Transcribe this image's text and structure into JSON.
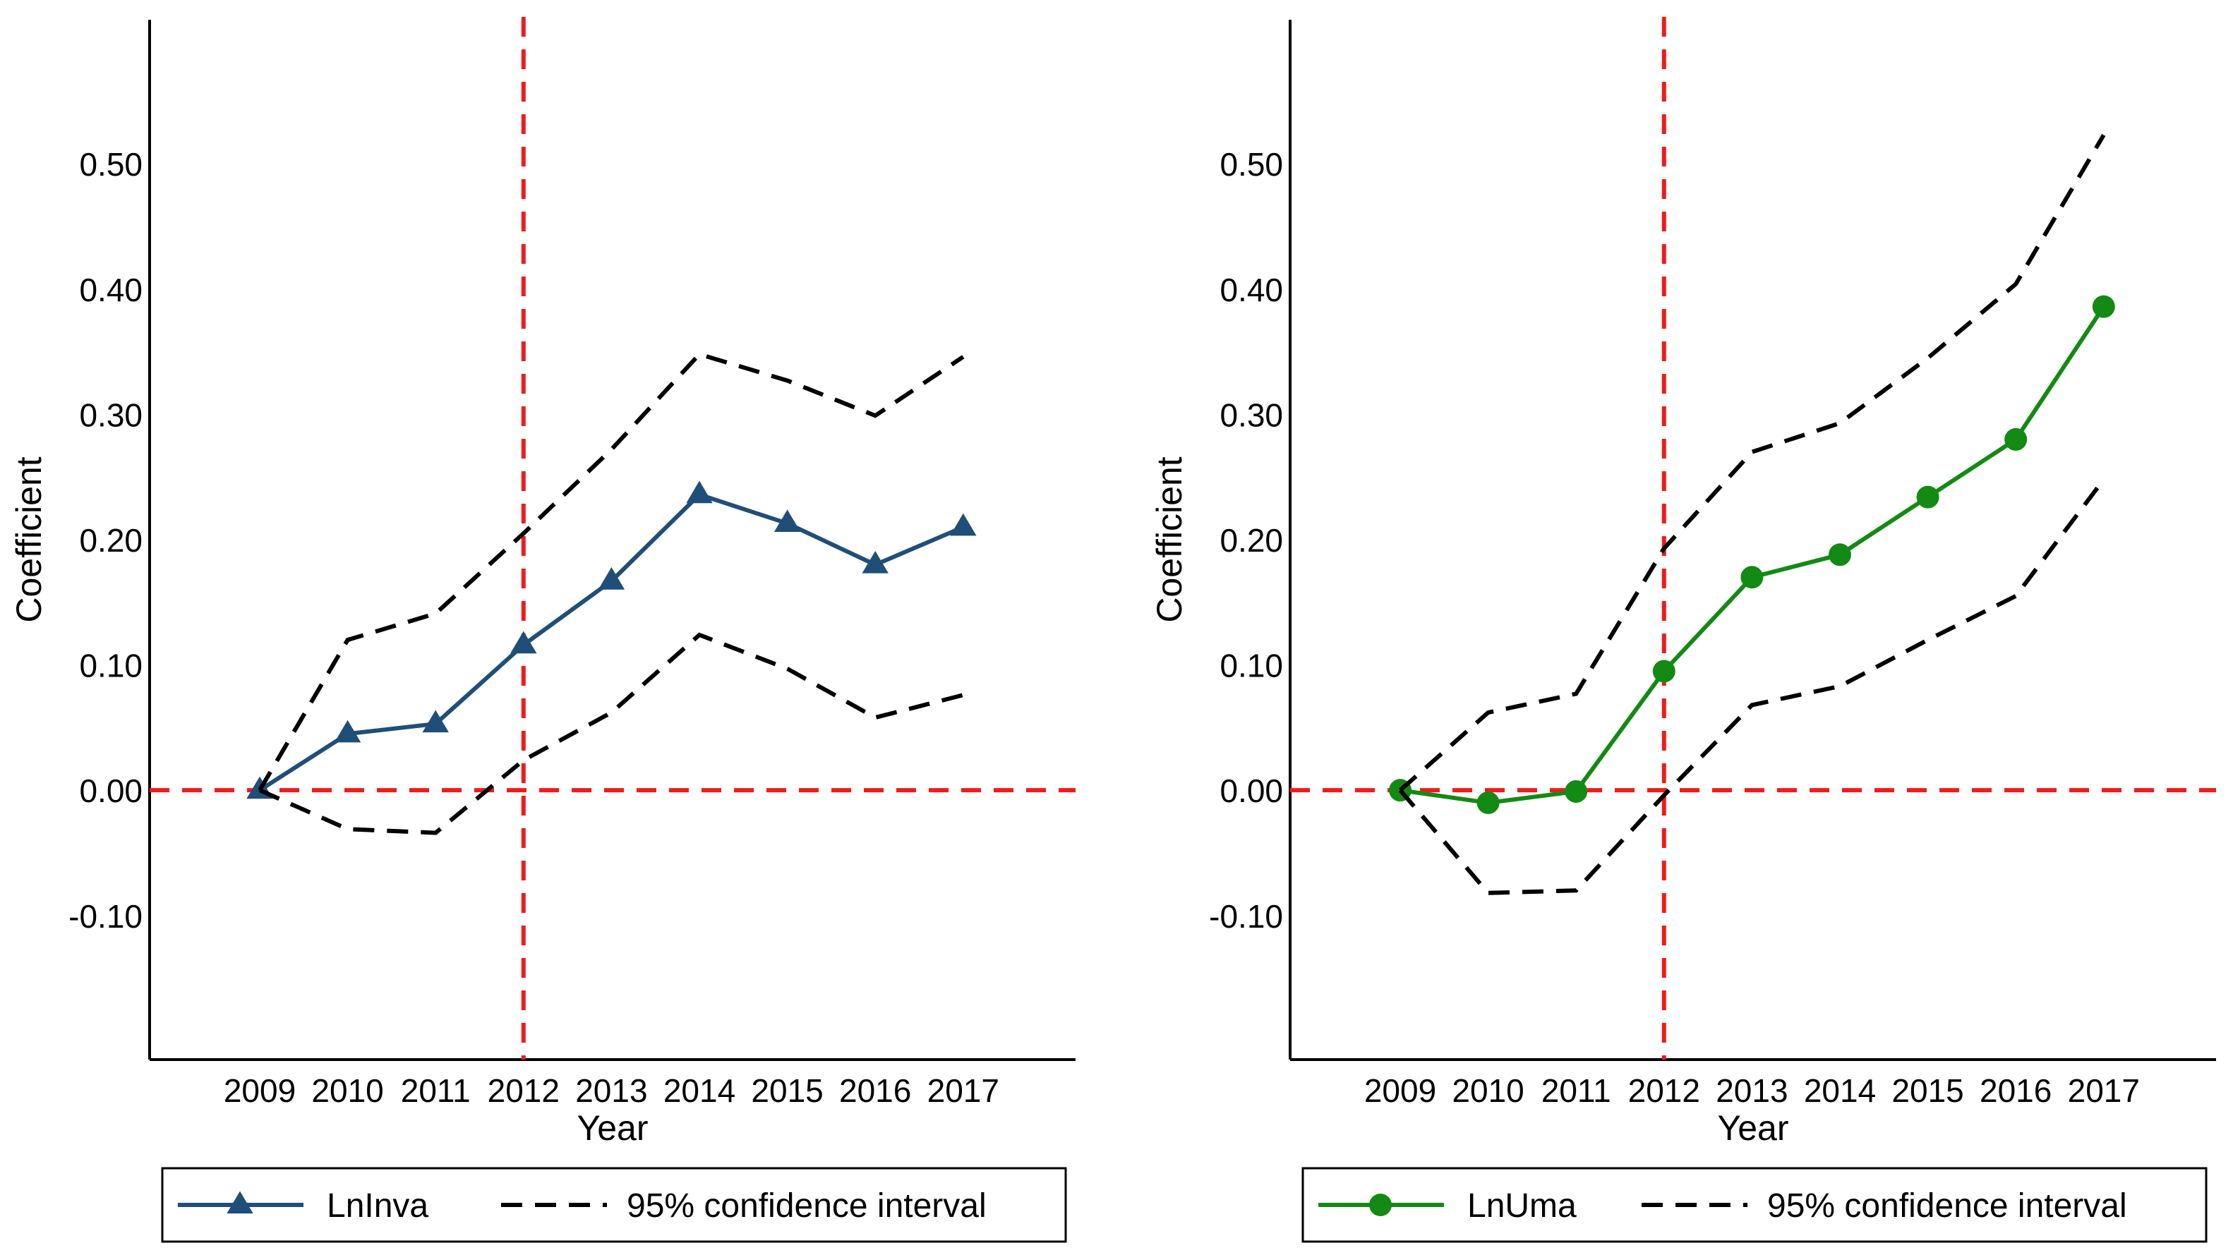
{
  "chart_data": [
    {
      "type": "line",
      "title": "",
      "xlabel": "Year",
      "ylabel": "Coefficient",
      "categories": [
        "2009",
        "2010",
        "2011",
        "2012",
        "2013",
        "2014",
        "2015",
        "2016",
        "2017"
      ],
      "ylim": [
        -0.215,
        0.615
      ],
      "yticks": [
        -0.1,
        0.0,
        0.1,
        0.2,
        0.3,
        0.4,
        0.5
      ],
      "ytick_labels": [
        "-0.10",
        "0.00",
        "0.10",
        "0.20",
        "0.30",
        "0.40",
        "0.50"
      ],
      "reference_lines": {
        "x_category": "2012",
        "y_value": 0.0,
        "color": "#ee1c1c"
      },
      "series": [
        {
          "name": "LnInva",
          "role": "estimate",
          "marker": "triangle",
          "color": "#1f4e79",
          "values": [
            0.0,
            0.045,
            0.053,
            0.116,
            0.167,
            0.236,
            0.213,
            0.18,
            0.21
          ]
        },
        {
          "name": "95% confidence interval",
          "role": "ci_upper",
          "color": "#000000",
          "values": [
            0.0,
            0.12,
            0.141,
            0.205,
            0.272,
            0.348,
            0.327,
            0.299,
            0.346
          ]
        },
        {
          "name": "95% confidence interval",
          "role": "ci_lower",
          "color": "#000000",
          "values": [
            0.0,
            -0.031,
            -0.034,
            0.024,
            0.062,
            0.124,
            0.097,
            0.058,
            0.076
          ]
        }
      ],
      "legend": {
        "position": "bottom",
        "entries": [
          {
            "label": "LnInva",
            "style": "solid-marker",
            "color": "#1f4e79"
          },
          {
            "label": "95% confidence interval",
            "style": "dashed",
            "color": "#000000"
          }
        ]
      }
    },
    {
      "type": "line",
      "title": "",
      "xlabel": "Year",
      "ylabel": "Coefficient",
      "categories": [
        "2009",
        "2010",
        "2011",
        "2012",
        "2013",
        "2014",
        "2015",
        "2016",
        "2017"
      ],
      "ylim": [
        -0.215,
        0.615
      ],
      "yticks": [
        -0.1,
        0.0,
        0.1,
        0.2,
        0.3,
        0.4,
        0.5
      ],
      "ytick_labels": [
        "-0.10",
        "0.00",
        "0.10",
        "0.20",
        "0.30",
        "0.40",
        "0.50"
      ],
      "reference_lines": {
        "x_category": "2012",
        "y_value": 0.0,
        "color": "#ee1c1c"
      },
      "series": [
        {
          "name": "LnUma",
          "role": "estimate",
          "marker": "circle",
          "color": "#138a13",
          "values": [
            0.0,
            -0.01,
            -0.001,
            0.095,
            0.17,
            0.188,
            0.234,
            0.28,
            0.386
          ]
        },
        {
          "name": "95% confidence interval",
          "role": "ci_upper",
          "color": "#000000",
          "values": [
            0.0,
            0.062,
            0.077,
            0.193,
            0.27,
            0.293,
            0.345,
            0.404,
            0.523
          ]
        },
        {
          "name": "95% confidence interval",
          "role": "ci_lower",
          "color": "#000000",
          "values": [
            0.0,
            -0.082,
            -0.08,
            -0.004,
            0.068,
            0.083,
            0.12,
            0.155,
            0.248
          ]
        }
      ],
      "legend": {
        "position": "bottom",
        "entries": [
          {
            "label": "LnUma",
            "style": "solid-marker",
            "color": "#138a13"
          },
          {
            "label": "95% confidence interval",
            "style": "dashed",
            "color": "#000000"
          }
        ]
      }
    }
  ]
}
